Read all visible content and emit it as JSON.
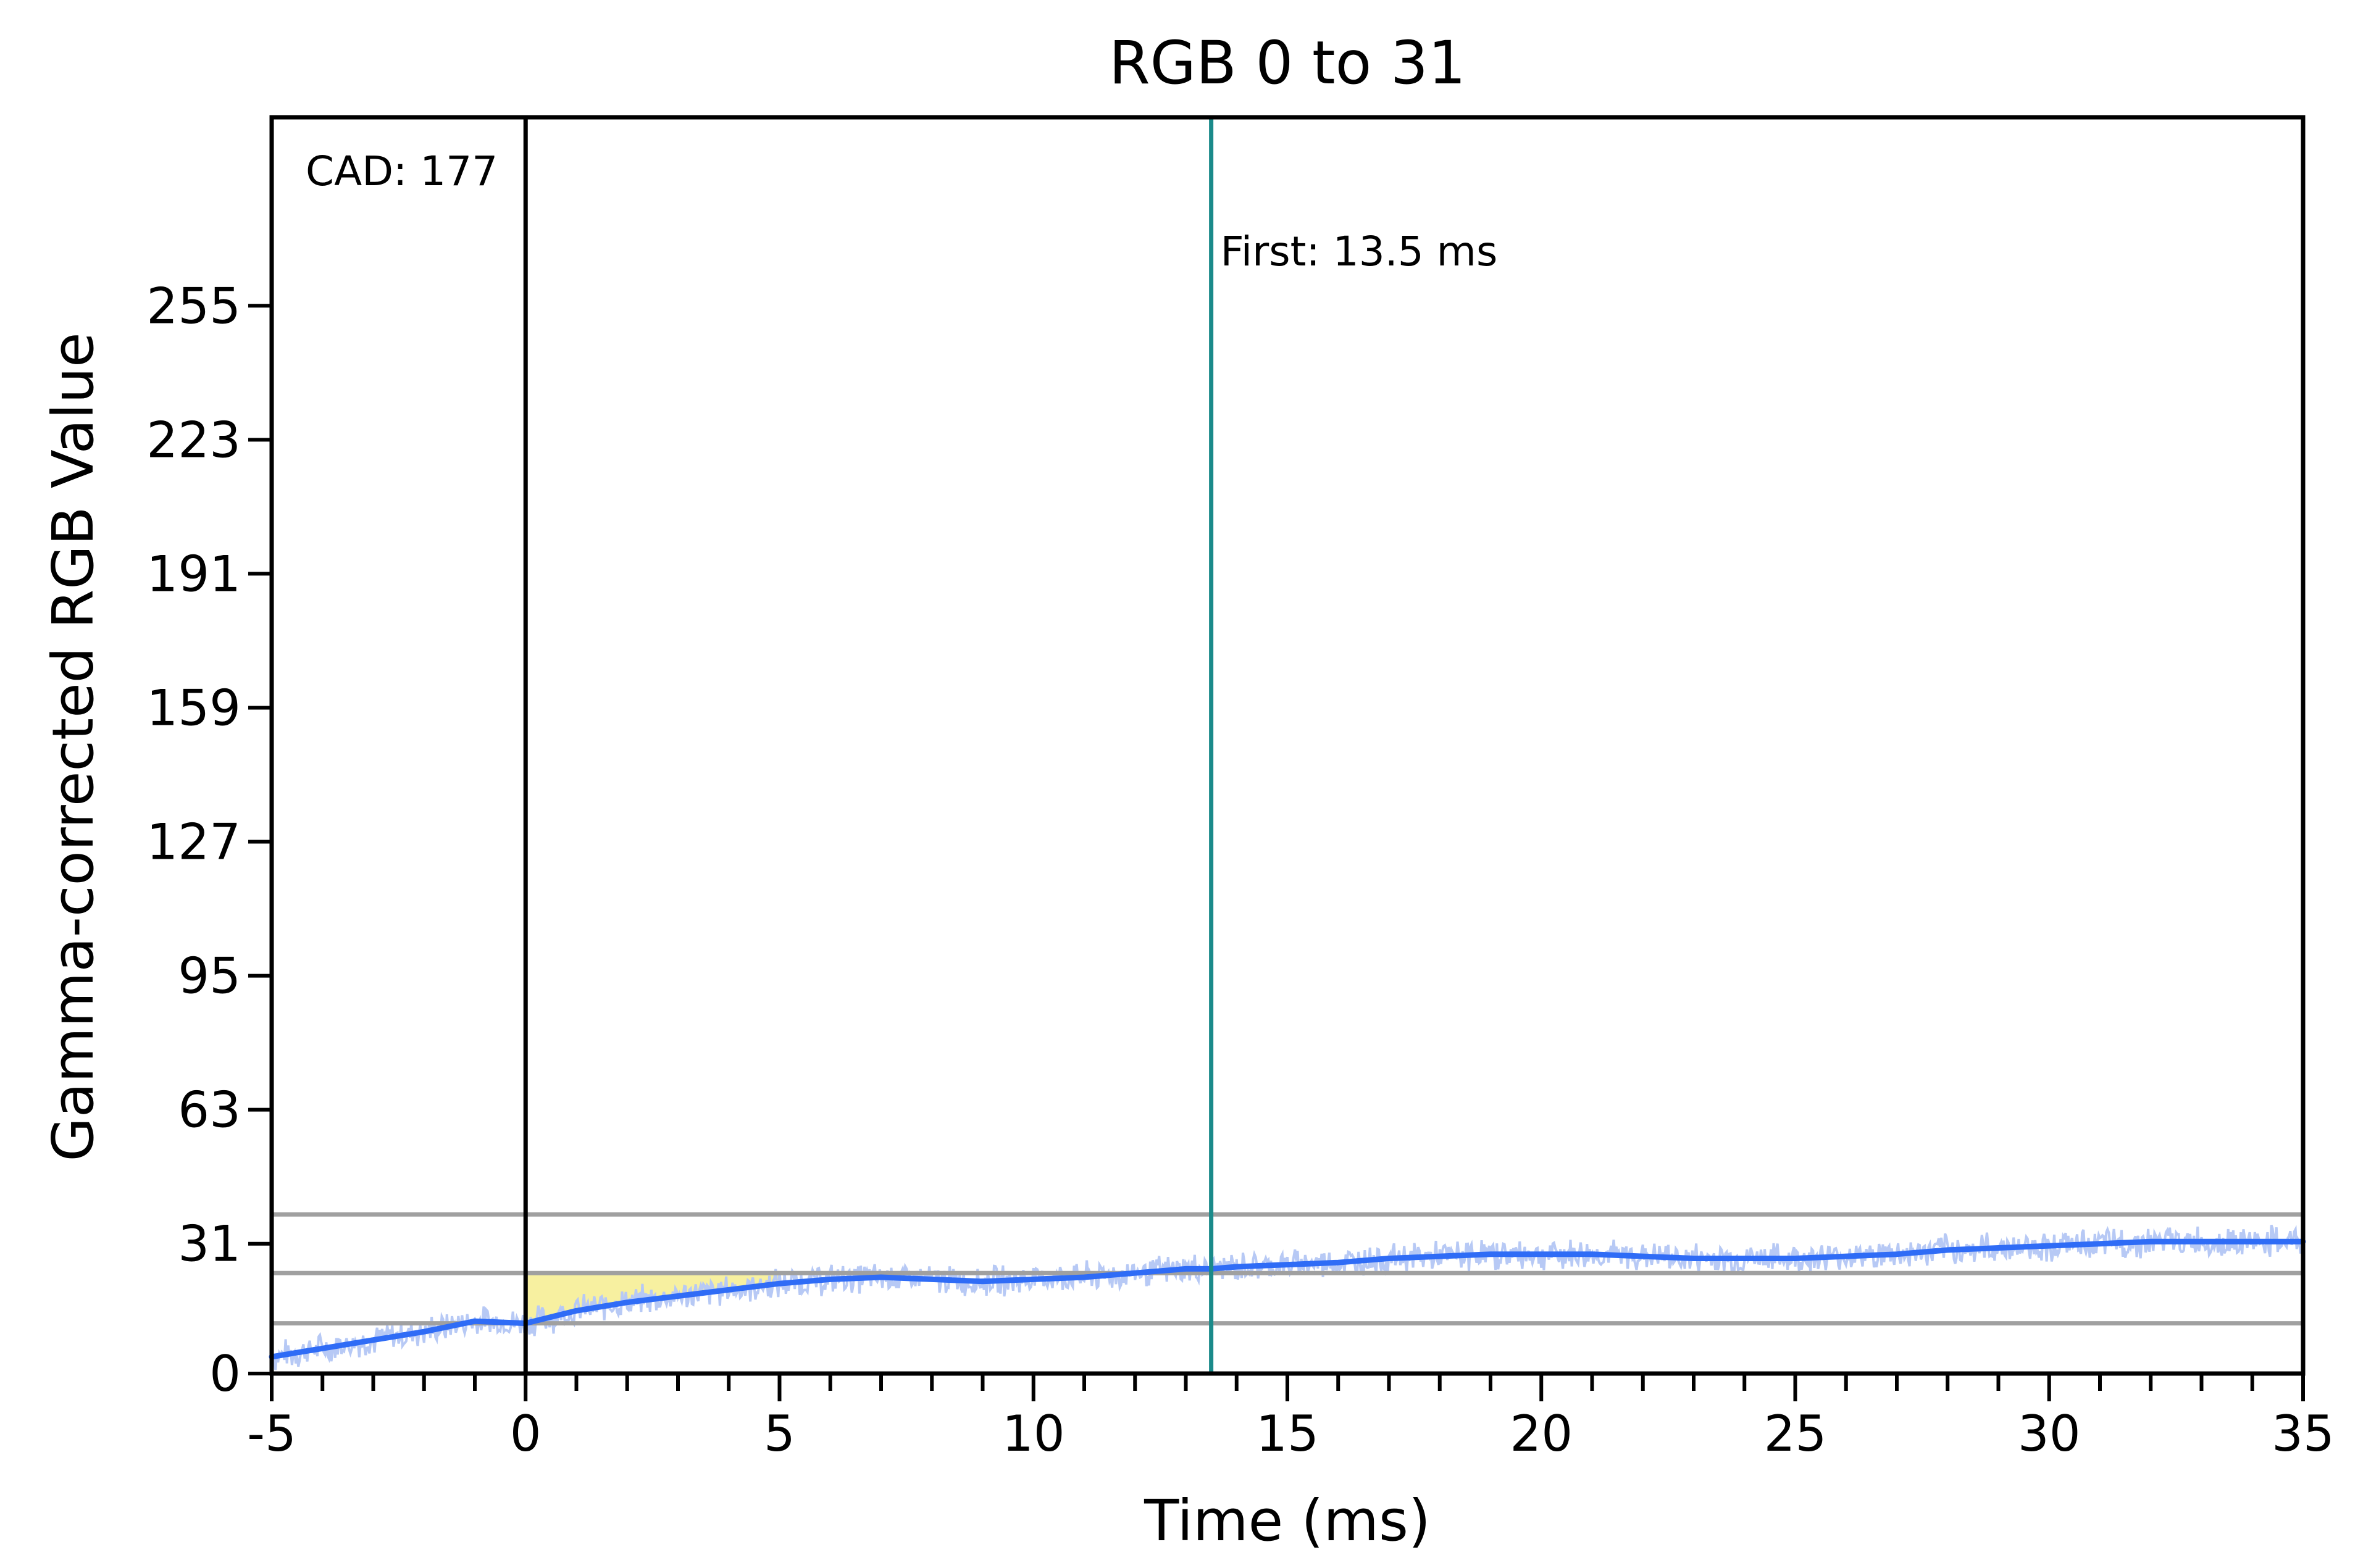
{
  "chart_data": {
    "type": "line",
    "title": "RGB 0 to 31",
    "xlabel": "Time (ms)",
    "ylabel": "Gamma-corrected RGB Value",
    "xlim": [
      -5,
      35
    ],
    "ylim": [
      0,
      300
    ],
    "x_ticks": [
      -5,
      0,
      5,
      10,
      15,
      20,
      25,
      30,
      35
    ],
    "y_ticks": [
      0,
      31,
      63,
      95,
      127,
      159,
      191,
      223,
      255
    ],
    "x_minor_step": 1,
    "grid": false,
    "reference_lines": [
      {
        "name": "upper-tolerance",
        "y": 38,
        "color": "#a0a0a0"
      },
      {
        "name": "target",
        "y": 24,
        "color": "#a0a0a0"
      },
      {
        "name": "lower-tolerance",
        "y": 12,
        "color": "#a0a0a0"
      }
    ],
    "vertical_markers": [
      {
        "name": "start",
        "x": 0,
        "color": "#000000"
      },
      {
        "name": "first",
        "x": 13.5,
        "color": "#1a8a8a"
      }
    ],
    "annotations": [
      {
        "name": "cad",
        "text": "CAD: 177"
      },
      {
        "name": "first",
        "text": "First: 13.5 ms"
      }
    ],
    "highlight_region": {
      "x_start": 0,
      "x_end": 5,
      "color": "#f7f0a0"
    },
    "series": [
      {
        "color": "#2f6cf6",
        "raw_color": "#b7c9f5",
        "x": [
          -5,
          -4,
          -3,
          -2,
          -1,
          0,
          1,
          2,
          3,
          4,
          5,
          6,
          7,
          8,
          9,
          10,
          11,
          12,
          13,
          13.5,
          14,
          15,
          16,
          17,
          18,
          19,
          20,
          21,
          22,
          23,
          24,
          25,
          26,
          27,
          28,
          29,
          30,
          31,
          32,
          33,
          34,
          35
        ],
        "values": [
          4,
          6,
          8,
          10,
          12.5,
          12,
          15,
          17,
          18.5,
          20,
          21.5,
          22.5,
          23,
          22.5,
          22,
          22.5,
          23,
          24,
          25,
          25,
          25.5,
          26,
          26.5,
          27.5,
          28,
          28.5,
          28.5,
          28.5,
          28,
          27.5,
          27.5,
          27.5,
          28,
          28.5,
          29.5,
          30,
          30.5,
          31,
          31.5,
          31.5,
          31.5,
          31.5
        ],
        "raw_noise": 3
      }
    ]
  }
}
